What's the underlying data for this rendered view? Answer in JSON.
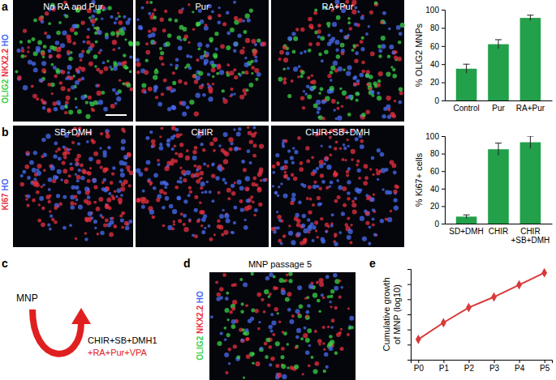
{
  "panels": {
    "a": {
      "label": "a",
      "images": [
        "No RA and Pur",
        "Pur",
        "RA+Pur"
      ],
      "stain": [
        {
          "text": "OLIG2",
          "color": "#3cd248"
        },
        {
          "text": "NKX2.2",
          "color": "#e83040"
        },
        {
          "text": "HO",
          "color": "#4a6cf0"
        }
      ]
    },
    "b": {
      "label": "b",
      "images": [
        "SB+DMH",
        "CHIR",
        "CHIR+SB+DMH"
      ],
      "stain": [
        {
          "text": "KI67",
          "color": "#e83040"
        },
        {
          "text": "HO",
          "color": "#4a6cf0"
        }
      ]
    },
    "c": {
      "label": "c",
      "cell": "MNP",
      "factors": "CHIR+SB+DMH1",
      "additions": "+RA+Pur+VPA"
    },
    "d": {
      "label": "d",
      "title": "MNP passage 5",
      "stain": [
        {
          "text": "OLIG2",
          "color": "#3cd248"
        },
        {
          "text": "NKX2.2",
          "color": "#e83040"
        },
        {
          "text": "HO",
          "color": "#4a6cf0"
        }
      ]
    },
    "e": {
      "label": "e"
    }
  },
  "chart_data": [
    {
      "type": "bar",
      "ylabel": "% OLIG2 MNPs",
      "categories": [
        "Control",
        "Pur",
        "RA+Pur"
      ],
      "values": [
        35,
        62,
        91
      ],
      "errors": [
        5,
        5,
        3
      ],
      "color": "#22a04a",
      "ylim": [
        0,
        100
      ],
      "yticks": [
        0,
        20,
        40,
        60,
        80,
        100
      ]
    },
    {
      "type": "bar",
      "ylabel": "% Ki67+ cells",
      "categories": [
        "SD+DMH",
        "CHIR",
        "CHIR +SB+DMH"
      ],
      "values": [
        8,
        85,
        93
      ],
      "errors": [
        2,
        7,
        7
      ],
      "color": "#22a04a",
      "ylim": [
        0,
        100
      ],
      "yticks": [
        0,
        20,
        40,
        60,
        80,
        100
      ]
    },
    {
      "type": "line",
      "ylabel": "Cumulative growth of MNP (log10)",
      "categories": [
        "P0",
        "P1",
        "P2",
        "P3",
        "P4",
        "P5"
      ],
      "values": [
        1.35,
        2.45,
        3.45,
        4.15,
        4.95,
        5.75
      ],
      "color": "#d83a3a",
      "marker": "diamond",
      "ylim": [
        0,
        6
      ],
      "yticks": [
        0,
        1,
        2,
        3,
        4,
        5,
        6
      ],
      "tick_labels": "x"
    }
  ]
}
